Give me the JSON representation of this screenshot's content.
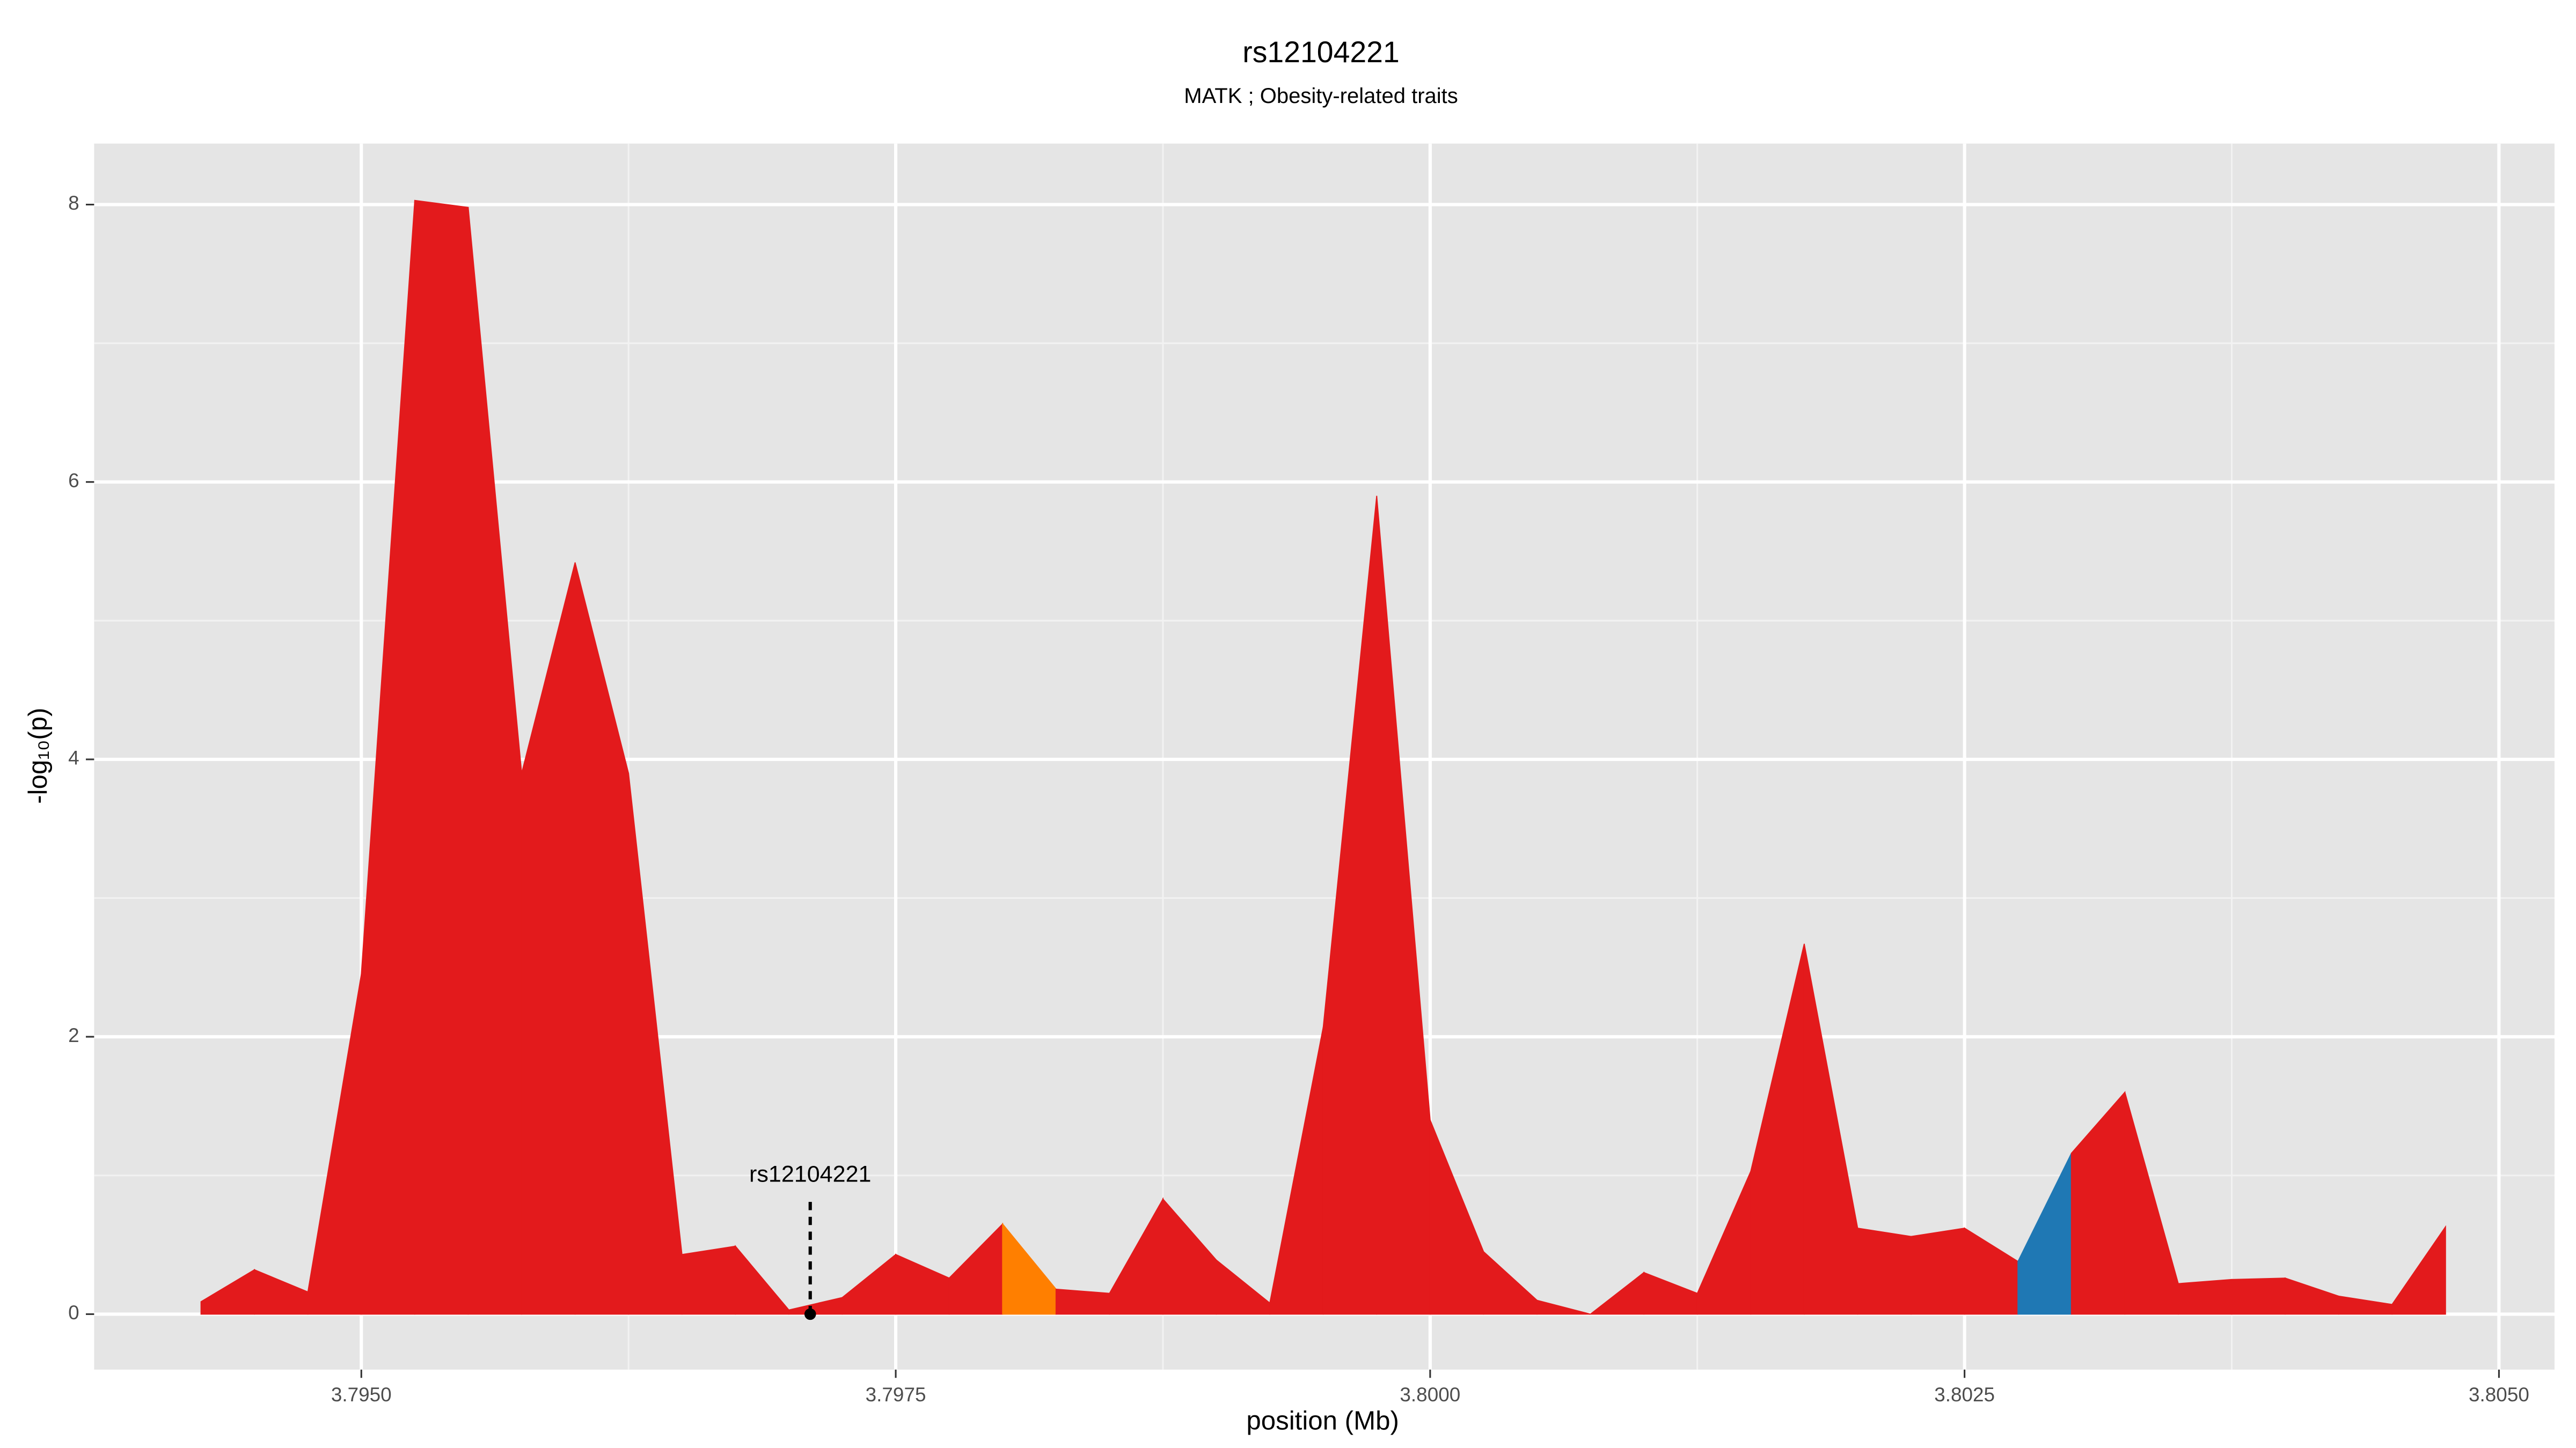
{
  "chart_data": {
    "type": "area",
    "title": "rs12104221",
    "subtitle": "MATK ; Obesity-related traits",
    "x_label": "position (Mb)",
    "y_label": "-log₁₀(p)",
    "x": [
      3.79425,
      3.7945,
      3.79475,
      3.795,
      3.79525,
      3.7955,
      3.79575,
      3.796,
      3.79625,
      3.7965,
      3.79675,
      3.797,
      3.79725,
      3.7975,
      3.79775,
      3.798,
      3.79825,
      3.7985,
      3.79875,
      3.799,
      3.79925,
      3.7995,
      3.79975,
      3.8,
      3.80025,
      3.8005,
      3.80075,
      3.801,
      3.80125,
      3.8015,
      3.80175,
      3.802,
      3.80225,
      3.8025,
      3.80275,
      3.803,
      3.80325,
      3.8035,
      3.80375,
      3.804,
      3.80425,
      3.8045,
      3.80475
    ],
    "series": [
      {
        "values": [
          0.09,
          0.32,
          0.16,
          2.45,
          8.03,
          7.98,
          3.9,
          5.42,
          3.9,
          0.43,
          0.49,
          0.03,
          0.12,
          0.43,
          0.26,
          0.65,
          0.18,
          0.15,
          0.83,
          0.39,
          0.08,
          2.07,
          5.9,
          1.4,
          0.45,
          0.1,
          0.0,
          0.3,
          0.15,
          1.03,
          2.67,
          0.62,
          0.56,
          0.62,
          0.38,
          1.16,
          1.6,
          0.22,
          0.25,
          0.26,
          0.13,
          0.07,
          0.63
        ],
        "colors": [
          "#e31a1c",
          "#e31a1c",
          "#e31a1c",
          "#e31a1c",
          "#e31a1c",
          "#e31a1c",
          "#e31a1c",
          "#e31a1c",
          "#e31a1c",
          "#e31a1c",
          "#e31a1c",
          "#e31a1c",
          "#e31a1c",
          "#e31a1c",
          "#e31a1c",
          "#ff7f00",
          "#e31a1c",
          "#e31a1c",
          "#e31a1c",
          "#e31a1c",
          "#e31a1c",
          "#e31a1c",
          "#e31a1c",
          "#e31a1c",
          "#e31a1c",
          "#e31a1c",
          "#e31a1c",
          "#e31a1c",
          "#e31a1c",
          "#e31a1c",
          "#e31a1c",
          "#e31a1c",
          "#e31a1c",
          "#e31a1c",
          "#1f78b4",
          "#e31a1c",
          "#e31a1c",
          "#e31a1c",
          "#e31a1c",
          "#e31a1c",
          "#e31a1c",
          "#e31a1c",
          "#e31a1c"
        ]
      }
    ],
    "annotation": {
      "text": "rs12104221",
      "x": 3.7971,
      "y": 0.0
    },
    "xlim": [
      3.79375,
      3.80526
    ],
    "xticks": [
      {
        "value": 3.795,
        "label": "3.7950"
      },
      {
        "value": 3.7975,
        "label": "3.7975"
      },
      {
        "value": 3.8,
        "label": "3.8000"
      },
      {
        "value": 3.8025,
        "label": "3.8025"
      },
      {
        "value": 3.805,
        "label": "3.8050"
      }
    ],
    "ylim": [
      -0.4,
      8.44
    ],
    "yticks": [
      0,
      2,
      4,
      6,
      8
    ],
    "grid": true
  }
}
